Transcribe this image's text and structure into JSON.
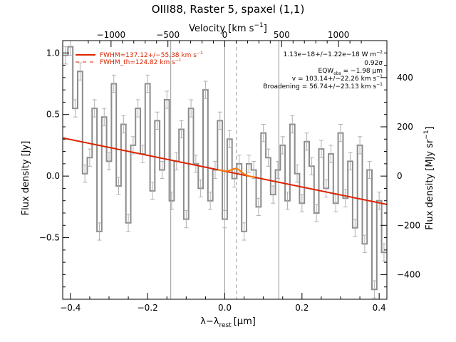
{
  "chart_data": {
    "type": "line",
    "title": "OIII88, Raster 5, spaxel (1,1)",
    "xlabel_main": "λ−λ",
    "xlabel_sub": "rest",
    "xlabel_unit": "[μm]",
    "ylabel": "Flux density [Jy]",
    "y2label": "Flux density [MJy sr",
    "y2label_exp": "−1",
    "y2label_close": "]",
    "top_axis_label": "Velocity [km s",
    "top_axis_label_exp": "−1",
    "top_axis_label_close": "]",
    "xlim": [
      -0.42,
      0.42
    ],
    "ylim": [
      -1.0,
      1.1
    ],
    "x_ticks": [
      -0.4,
      -0.2,
      0.0,
      0.2,
      0.4
    ],
    "x_tick_labels": [
      "−0.4",
      "−0.2",
      "0.0",
      "0.2",
      "0.4"
    ],
    "y_ticks": [
      -0.5,
      0.0,
      0.5,
      1.0
    ],
    "y_tick_labels": [
      "−0.5",
      "0.0",
      "0.5",
      "1.0"
    ],
    "top_ticks_velocity": [
      -1000,
      -500,
      0,
      500,
      1000
    ],
    "top_tick_labels": [
      "−1000",
      "−500",
      "0",
      "500",
      "1000"
    ],
    "right_ticks": [
      -400,
      -200,
      0,
      200,
      400
    ],
    "right_tick_labels": [
      "−400",
      "−200",
      "0",
      "200",
      "400"
    ],
    "right_axis_zero_flux": 0.0,
    "right_axis_jy_per_100": 0.2,
    "vertical_lines_solid": [
      -0.14,
      0.0,
      0.14
    ],
    "vertical_line_dashed": 0.03,
    "legend": [
      {
        "label": "FWHM=137.12+/−55.38 km s",
        "exp": "−1",
        "style": "solid"
      },
      {
        "label": "FWHM_th=124.82 km s",
        "exp": "−1",
        "style": "dashed"
      }
    ],
    "annotations": [
      {
        "text": "1.13e−18+/−1.22e−18 W m",
        "exp": "−2"
      },
      {
        "text": "0.92σ"
      },
      {
        "text": "EQW",
        "sub": "obs",
        "rest": " = −1.98 μm"
      },
      {
        "text": "v = 103.14+/−22.26 km s",
        "exp": "−1"
      },
      {
        "text": "Broadening = 56.74+/−23.13 km s",
        "exp": "−1"
      }
    ],
    "continuum": {
      "x": [
        -0.42,
        0.42
      ],
      "y": [
        0.31,
        -0.23
      ]
    },
    "fit_line": {
      "center": 0.03,
      "amplitude": 0.04,
      "sigma": 0.012
    },
    "series": [
      {
        "name": "data",
        "step": 0.0125,
        "x": [
          -0.4125,
          -0.4,
          -0.3875,
          -0.375,
          -0.3625,
          -0.35,
          -0.3375,
          -0.325,
          -0.3125,
          -0.3,
          -0.2875,
          -0.275,
          -0.2625,
          -0.25,
          -0.2375,
          -0.225,
          -0.2125,
          -0.2,
          -0.1875,
          -0.175,
          -0.1625,
          -0.15,
          -0.1375,
          -0.125,
          -0.1125,
          -0.1,
          -0.0875,
          -0.075,
          -0.0625,
          -0.05,
          -0.0375,
          -0.025,
          -0.0125,
          0.0,
          0.0125,
          0.025,
          0.0375,
          0.05,
          0.0625,
          0.075,
          0.0875,
          0.1,
          0.1125,
          0.125,
          0.1375,
          0.15,
          0.1625,
          0.175,
          0.1875,
          0.2,
          0.2125,
          0.225,
          0.2375,
          0.25,
          0.2625,
          0.275,
          0.2875,
          0.3,
          0.3125,
          0.325,
          0.3375,
          0.35,
          0.3625,
          0.375,
          0.3875,
          0.4,
          0.4125
        ],
        "y": [
          0.98,
          1.05,
          0.55,
          0.85,
          0.02,
          0.15,
          0.55,
          -0.45,
          0.48,
          0.12,
          0.75,
          -0.08,
          0.42,
          -0.38,
          0.25,
          0.55,
          0.18,
          0.75,
          -0.12,
          0.45,
          0.05,
          0.62,
          -0.2,
          0.12,
          0.38,
          -0.35,
          0.55,
          0.1,
          -0.1,
          0.7,
          -0.2,
          0.05,
          0.45,
          -0.35,
          0.3,
          -0.02,
          0.1,
          -0.45,
          0.1,
          0.05,
          -0.25,
          0.35,
          0.15,
          -0.15,
          0.05,
          0.25,
          -0.2,
          0.42,
          0.02,
          -0.22,
          0.28,
          0.08,
          -0.3,
          0.22,
          -0.1,
          0.18,
          -0.22,
          0.35,
          -0.18,
          0.12,
          -0.42,
          0.25,
          -0.55,
          0.05,
          -0.92,
          -0.2,
          -0.62
        ],
        "yerr": 0.07
      }
    ]
  }
}
